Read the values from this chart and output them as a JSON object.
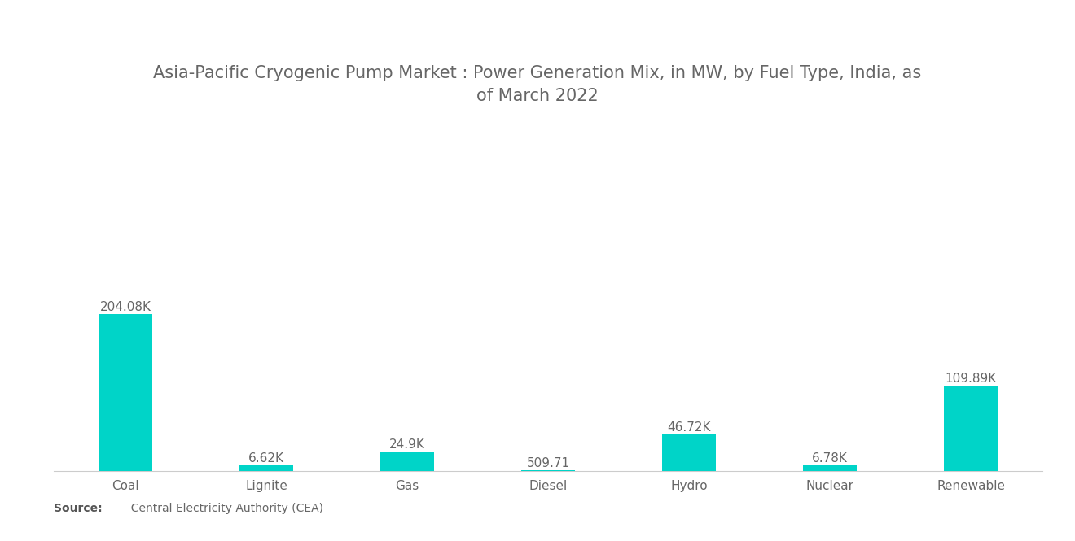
{
  "title": "Asia-Pacific Cryogenic Pump Market : Power Generation Mix, in MW, by Fuel Type, India, as\nof March 2022",
  "categories": [
    "Coal",
    "Lignite",
    "Gas",
    "Diesel",
    "Hydro",
    "Nuclear",
    "Renewable"
  ],
  "values": [
    204080,
    6620,
    24900,
    509.71,
    46720,
    6780,
    109890
  ],
  "labels": [
    "204.08K",
    "6.62K",
    "24.9K",
    "509.71",
    "46.72K",
    "6.78K",
    "109.89K"
  ],
  "bar_color": "#00D4C8",
  "background_color": "#ffffff",
  "title_color": "#666666",
  "label_color": "#666666",
  "tick_color": "#666666",
  "source_bold": "Source:",
  "source_rest": "  Central Electricity Authority (CEA)",
  "title_fontsize": 15,
  "label_fontsize": 11,
  "tick_fontsize": 11,
  "source_fontsize": 10,
  "bar_width": 0.38,
  "ylim_factor": 1.45
}
